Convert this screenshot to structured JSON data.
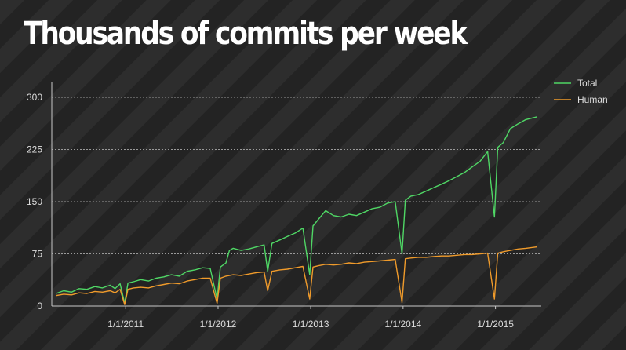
{
  "chart_data": {
    "type": "line",
    "title": "Thousands of commits per week",
    "xlabel": "",
    "ylabel": "",
    "x_ticks": [
      "1/1/2011",
      "1/1/2012",
      "1/1/2013",
      "1/1/2014",
      "1/1/2015"
    ],
    "y_ticks": [
      0,
      75,
      150,
      225,
      300
    ],
    "ylim": [
      0,
      300
    ],
    "xlim": [
      "2010-03-15",
      "2015-07-01"
    ],
    "grid": "horizontal dotted",
    "legend_position": "top-right",
    "series": [
      {
        "name": "Total",
        "color": "#4fd765",
        "points": [
          [
            "2010-04-01",
            18
          ],
          [
            "2010-05-01",
            22
          ],
          [
            "2010-06-01",
            20
          ],
          [
            "2010-07-01",
            25
          ],
          [
            "2010-08-01",
            24
          ],
          [
            "2010-09-01",
            28
          ],
          [
            "2010-10-01",
            26
          ],
          [
            "2010-11-01",
            30
          ],
          [
            "2010-11-20",
            25
          ],
          [
            "2010-12-10",
            32
          ],
          [
            "2010-12-28",
            4
          ],
          [
            "2011-01-10",
            33
          ],
          [
            "2011-02-01",
            35
          ],
          [
            "2011-03-01",
            38
          ],
          [
            "2011-04-01",
            36
          ],
          [
            "2011-05-01",
            40
          ],
          [
            "2011-06-01",
            42
          ],
          [
            "2011-07-01",
            45
          ],
          [
            "2011-08-01",
            43
          ],
          [
            "2011-09-01",
            50
          ],
          [
            "2011-10-01",
            52
          ],
          [
            "2011-11-01",
            55
          ],
          [
            "2011-12-01",
            54
          ],
          [
            "2011-12-28",
            10
          ],
          [
            "2012-01-10",
            56
          ],
          [
            "2012-02-01",
            62
          ],
          [
            "2012-02-15",
            80
          ],
          [
            "2012-03-01",
            83
          ],
          [
            "2012-04-01",
            80
          ],
          [
            "2012-05-01",
            82
          ],
          [
            "2012-06-01",
            85
          ],
          [
            "2012-07-01",
            88
          ],
          [
            "2012-07-15",
            50
          ],
          [
            "2012-08-01",
            90
          ],
          [
            "2012-09-01",
            95
          ],
          [
            "2012-10-01",
            100
          ],
          [
            "2012-11-01",
            105
          ],
          [
            "2012-12-01",
            112
          ],
          [
            "2012-12-28",
            45
          ],
          [
            "2013-01-10",
            115
          ],
          [
            "2013-02-01",
            125
          ],
          [
            "2013-03-01",
            137
          ],
          [
            "2013-04-01",
            130
          ],
          [
            "2013-05-01",
            128
          ],
          [
            "2013-06-01",
            132
          ],
          [
            "2013-07-01",
            130
          ],
          [
            "2013-08-01",
            135
          ],
          [
            "2013-09-01",
            140
          ],
          [
            "2013-10-01",
            142
          ],
          [
            "2013-11-01",
            148
          ],
          [
            "2013-12-01",
            150
          ],
          [
            "2013-12-28",
            75
          ],
          [
            "2014-01-10",
            152
          ],
          [
            "2014-02-01",
            158
          ],
          [
            "2014-03-01",
            160
          ],
          [
            "2014-04-01",
            165
          ],
          [
            "2014-05-01",
            170
          ],
          [
            "2014-06-01",
            175
          ],
          [
            "2014-07-01",
            180
          ],
          [
            "2014-08-01",
            186
          ],
          [
            "2014-09-01",
            192
          ],
          [
            "2014-10-01",
            200
          ],
          [
            "2014-11-01",
            208
          ],
          [
            "2014-12-01",
            222
          ],
          [
            "2014-12-28",
            128
          ],
          [
            "2015-01-10",
            228
          ],
          [
            "2015-02-01",
            235
          ],
          [
            "2015-03-01",
            255
          ],
          [
            "2015-04-01",
            262
          ],
          [
            "2015-05-01",
            268
          ],
          [
            "2015-06-15",
            272
          ]
        ]
      },
      {
        "name": "Human",
        "color": "#f09b2b",
        "points": [
          [
            "2010-04-01",
            15
          ],
          [
            "2010-05-01",
            17
          ],
          [
            "2010-06-01",
            16
          ],
          [
            "2010-07-01",
            19
          ],
          [
            "2010-08-01",
            18
          ],
          [
            "2010-09-01",
            21
          ],
          [
            "2010-10-01",
            20
          ],
          [
            "2010-11-01",
            22
          ],
          [
            "2010-11-20",
            19
          ],
          [
            "2010-12-10",
            24
          ],
          [
            "2010-12-28",
            2
          ],
          [
            "2011-01-10",
            24
          ],
          [
            "2011-02-01",
            26
          ],
          [
            "2011-03-01",
            27
          ],
          [
            "2011-04-01",
            26
          ],
          [
            "2011-05-01",
            29
          ],
          [
            "2011-06-01",
            31
          ],
          [
            "2011-07-01",
            33
          ],
          [
            "2011-08-01",
            32
          ],
          [
            "2011-09-01",
            36
          ],
          [
            "2011-10-01",
            38
          ],
          [
            "2011-11-01",
            40
          ],
          [
            "2011-12-01",
            40
          ],
          [
            "2011-12-28",
            4
          ],
          [
            "2012-01-10",
            40
          ],
          [
            "2012-02-01",
            43
          ],
          [
            "2012-03-01",
            45
          ],
          [
            "2012-04-01",
            44
          ],
          [
            "2012-05-01",
            46
          ],
          [
            "2012-06-01",
            48
          ],
          [
            "2012-07-01",
            49
          ],
          [
            "2012-07-15",
            22
          ],
          [
            "2012-08-01",
            50
          ],
          [
            "2012-09-01",
            52
          ],
          [
            "2012-10-01",
            53
          ],
          [
            "2012-11-01",
            55
          ],
          [
            "2012-12-01",
            57
          ],
          [
            "2012-12-28",
            10
          ],
          [
            "2013-01-10",
            56
          ],
          [
            "2013-02-01",
            58
          ],
          [
            "2013-03-01",
            60
          ],
          [
            "2013-04-01",
            59
          ],
          [
            "2013-05-01",
            60
          ],
          [
            "2013-06-01",
            62
          ],
          [
            "2013-07-01",
            61
          ],
          [
            "2013-08-01",
            63
          ],
          [
            "2013-09-01",
            64
          ],
          [
            "2013-10-01",
            65
          ],
          [
            "2013-11-01",
            66
          ],
          [
            "2013-12-01",
            67
          ],
          [
            "2013-12-28",
            5
          ],
          [
            "2014-01-10",
            68
          ],
          [
            "2014-02-01",
            69
          ],
          [
            "2014-03-01",
            70
          ],
          [
            "2014-04-01",
            70
          ],
          [
            "2014-05-01",
            71
          ],
          [
            "2014-06-01",
            72
          ],
          [
            "2014-07-01",
            72
          ],
          [
            "2014-08-01",
            73
          ],
          [
            "2014-09-01",
            74
          ],
          [
            "2014-10-01",
            74
          ],
          [
            "2014-11-01",
            75
          ],
          [
            "2014-12-01",
            76
          ],
          [
            "2014-12-28",
            10
          ],
          [
            "2015-01-10",
            76
          ],
          [
            "2015-02-01",
            78
          ],
          [
            "2015-03-01",
            80
          ],
          [
            "2015-04-01",
            82
          ],
          [
            "2015-05-01",
            83
          ],
          [
            "2015-06-15",
            85
          ]
        ]
      }
    ]
  }
}
